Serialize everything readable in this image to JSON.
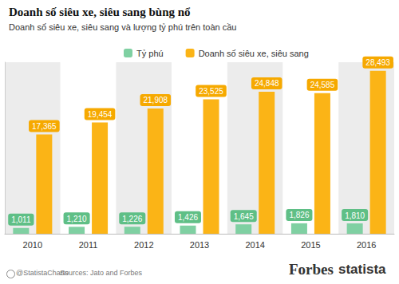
{
  "chart_data": {
    "type": "bar",
    "title": "Doanh số siêu xe, siêu sang bùng nổ",
    "subtitle": "Doanh số siêu xe, siêu sang và lượng tỷ phú trên toàn cầu",
    "categories": [
      "2010",
      "2011",
      "2012",
      "2013",
      "2014",
      "2015",
      "2016"
    ],
    "series": [
      {
        "name": "Tỷ phú",
        "color": "#7fd0a2",
        "values": [
          1011,
          1210,
          1226,
          1426,
          1645,
          1826,
          1810
        ],
        "value_labels": [
          "1,011",
          "1,210",
          "1,226",
          "1,426",
          "1,645",
          "1,826",
          "1,810"
        ]
      },
      {
        "name": "Doanh số siêu xe, siêu sang",
        "color": "#fbb416",
        "values": [
          17365,
          19454,
          21908,
          23525,
          24848,
          24585,
          28493
        ],
        "value_labels": [
          "17,365",
          "19,454",
          "21,908",
          "23,525",
          "24,848",
          "24,585",
          "28,493"
        ]
      }
    ],
    "ylim": [
      0,
      30000
    ],
    "yticks": [
      0
    ],
    "grid": false,
    "legend": "top",
    "data_labels": true,
    "tick_labels": "x",
    "annotations": [
      "@StatistaCharts",
      "Sources: Jato and Forbes",
      "Forbes",
      "statista"
    ]
  }
}
